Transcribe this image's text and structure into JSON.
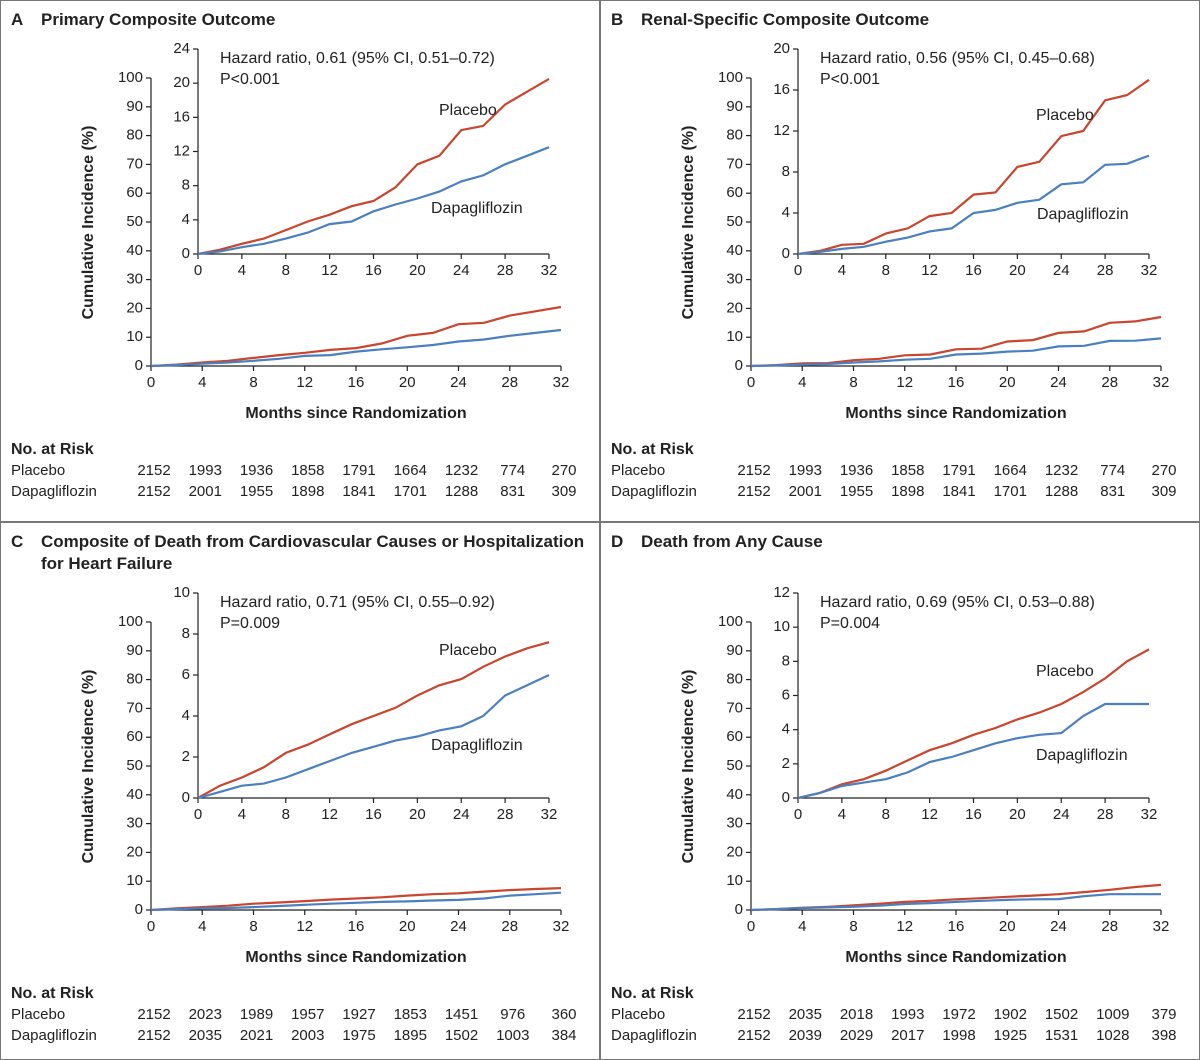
{
  "chart_data": [
    {
      "type": "line",
      "label": "A",
      "title": "Primary Composite Outcome",
      "xlabel": "Months since Randomization",
      "ylabel": "Cumulative Incidence (%)",
      "x": [
        0,
        2,
        4,
        6,
        8,
        10,
        12,
        14,
        16,
        18,
        20,
        22,
        24,
        26,
        28,
        30,
        32
      ],
      "xlim": [
        0,
        32
      ],
      "xticks": [
        0,
        4,
        8,
        12,
        16,
        20,
        24,
        28,
        32
      ],
      "ylim": [
        0,
        100
      ],
      "yticks": [
        0,
        10,
        20,
        30,
        40,
        50,
        60,
        70,
        80,
        90,
        100
      ],
      "series": [
        {
          "name": "Placebo",
          "color": "#c9452c",
          "values": [
            0,
            0.5,
            1.2,
            1.8,
            2.8,
            3.8,
            4.6,
            5.6,
            6.2,
            7.8,
            10.5,
            11.5,
            14.5,
            15,
            17.5,
            19,
            20.5
          ]
        },
        {
          "name": "Dapagliflozin",
          "color": "#4a80c0",
          "values": [
            0,
            0.3,
            0.8,
            1.2,
            1.8,
            2.5,
            3.5,
            3.8,
            5,
            5.8,
            6.5,
            7.3,
            8.5,
            9.2,
            10.5,
            11.5,
            12.5
          ]
        }
      ],
      "inset": {
        "ylim": [
          0,
          24
        ],
        "yticks": [
          0,
          4,
          8,
          12,
          16,
          20,
          24
        ]
      },
      "annotations": [
        "Hazard ratio, 0.61 (95% CI, 0.51–0.72)",
        "P<0.001"
      ],
      "risk_table": {
        "title": "No. at Risk",
        "rows": [
          {
            "name": "Placebo",
            "values": [
              2152,
              1993,
              1936,
              1858,
              1791,
              1664,
              1232,
              774,
              270
            ]
          },
          {
            "name": "Dapagliflozin",
            "values": [
              2152,
              2001,
              1955,
              1898,
              1841,
              1701,
              1288,
              831,
              309
            ]
          }
        ]
      }
    },
    {
      "type": "line",
      "label": "B",
      "title": "Renal-Specific Composite Outcome",
      "xlabel": "Months since Randomization",
      "ylabel": "Cumulative Incidence (%)",
      "x": [
        0,
        2,
        4,
        6,
        8,
        10,
        12,
        14,
        16,
        18,
        20,
        22,
        24,
        26,
        28,
        30,
        32
      ],
      "xlim": [
        0,
        32
      ],
      "xticks": [
        0,
        4,
        8,
        12,
        16,
        20,
        24,
        28,
        32
      ],
      "ylim": [
        0,
        100
      ],
      "yticks": [
        0,
        10,
        20,
        30,
        40,
        50,
        60,
        70,
        80,
        90,
        100
      ],
      "series": [
        {
          "name": "Placebo",
          "color": "#c9452c",
          "values": [
            0,
            0.3,
            0.9,
            1,
            2,
            2.5,
            3.7,
            4,
            5.8,
            6,
            8.5,
            9,
            11.5,
            12,
            15,
            15.5,
            17
          ]
        },
        {
          "name": "Dapagliflozin",
          "color": "#4a80c0",
          "values": [
            0,
            0.2,
            0.5,
            0.7,
            1.2,
            1.6,
            2.2,
            2.5,
            4,
            4.3,
            5,
            5.3,
            6.8,
            7,
            8.7,
            8.8,
            9.6
          ]
        }
      ],
      "inset": {
        "ylim": [
          0,
          20
        ],
        "yticks": [
          0,
          4,
          8,
          12,
          16,
          20
        ]
      },
      "annotations": [
        "Hazard ratio, 0.56 (95% CI, 0.45–0.68)",
        "P<0.001"
      ],
      "risk_table": {
        "title": "No. at Risk",
        "rows": [
          {
            "name": "Placebo",
            "values": [
              2152,
              1993,
              1936,
              1858,
              1791,
              1664,
              1232,
              774,
              270
            ]
          },
          {
            "name": "Dapagliflozin",
            "values": [
              2152,
              2001,
              1955,
              1898,
              1841,
              1701,
              1288,
              831,
              309
            ]
          }
        ]
      }
    },
    {
      "type": "line",
      "label": "C",
      "title": "Composite of Death from Cardiovascular Causes or Hospitalization for Heart Failure",
      "xlabel": "Months since Randomization",
      "ylabel": "Cumulative Incidence (%)",
      "x": [
        0,
        2,
        4,
        6,
        8,
        10,
        12,
        14,
        16,
        18,
        20,
        22,
        24,
        26,
        28,
        30,
        32
      ],
      "xlim": [
        0,
        32
      ],
      "xticks": [
        0,
        4,
        8,
        12,
        16,
        20,
        24,
        28,
        32
      ],
      "ylim": [
        0,
        100
      ],
      "yticks": [
        0,
        10,
        20,
        30,
        40,
        50,
        60,
        70,
        80,
        90,
        100
      ],
      "series": [
        {
          "name": "Placebo",
          "color": "#c9452c",
          "values": [
            0,
            0.6,
            1,
            1.5,
            2.2,
            2.6,
            3.1,
            3.6,
            4,
            4.4,
            5,
            5.5,
            5.8,
            6.4,
            6.9,
            7.3,
            7.6
          ]
        },
        {
          "name": "Dapagliflozin",
          "color": "#4a80c0",
          "values": [
            0,
            0.3,
            0.6,
            0.7,
            1,
            1.4,
            1.8,
            2.2,
            2.5,
            2.8,
            3,
            3.3,
            3.5,
            4,
            5,
            5.5,
            6
          ]
        }
      ],
      "inset": {
        "ylim": [
          0,
          10
        ],
        "yticks": [
          0,
          2,
          4,
          6,
          8,
          10
        ]
      },
      "annotations": [
        "Hazard ratio, 0.71 (95% CI, 0.55–0.92)",
        "P=0.009"
      ],
      "risk_table": {
        "title": "No. at Risk",
        "rows": [
          {
            "name": "Placebo",
            "values": [
              2152,
              2023,
              1989,
              1957,
              1927,
              1853,
              1451,
              976,
              360
            ]
          },
          {
            "name": "Dapagliflozin",
            "values": [
              2152,
              2035,
              2021,
              2003,
              1975,
              1895,
              1502,
              1003,
              384
            ]
          }
        ]
      }
    },
    {
      "type": "line",
      "label": "D",
      "title": "Death from Any Cause",
      "xlabel": "Months since Randomization",
      "ylabel": "Cumulative Incidence (%)",
      "x": [
        0,
        2,
        4,
        6,
        8,
        10,
        12,
        14,
        16,
        18,
        20,
        22,
        24,
        26,
        28,
        30,
        32
      ],
      "xlim": [
        0,
        32
      ],
      "xticks": [
        0,
        4,
        8,
        12,
        16,
        20,
        24,
        28,
        32
      ],
      "ylim": [
        0,
        100
      ],
      "yticks": [
        0,
        10,
        20,
        30,
        40,
        50,
        60,
        70,
        80,
        90,
        100
      ],
      "series": [
        {
          "name": "Placebo",
          "color": "#c9452c",
          "values": [
            0,
            0.3,
            0.8,
            1.1,
            1.6,
            2.2,
            2.8,
            3.2,
            3.7,
            4.1,
            4.6,
            5,
            5.5,
            6.2,
            7,
            8,
            8.7
          ]
        },
        {
          "name": "Dapagliflozin",
          "color": "#4a80c0",
          "values": [
            0,
            0.3,
            0.7,
            0.9,
            1.1,
            1.5,
            2.1,
            2.4,
            2.8,
            3.2,
            3.5,
            3.7,
            3.8,
            4.8,
            5.5,
            5.5,
            5.5
          ]
        }
      ],
      "inset": {
        "ylim": [
          0,
          12
        ],
        "yticks": [
          0,
          2,
          4,
          6,
          8,
          10,
          12
        ]
      },
      "annotations": [
        "Hazard ratio, 0.69 (95% CI, 0.53–0.88)",
        "P=0.004"
      ],
      "risk_table": {
        "title": "No. at Risk",
        "rows": [
          {
            "name": "Placebo",
            "values": [
              2152,
              2035,
              2018,
              1993,
              1972,
              1902,
              1502,
              1009,
              379
            ]
          },
          {
            "name": "Dapagliflozin",
            "values": [
              2152,
              2039,
              2029,
              2017,
              1998,
              1925,
              1531,
              1028,
              398
            ]
          }
        ]
      }
    }
  ]
}
